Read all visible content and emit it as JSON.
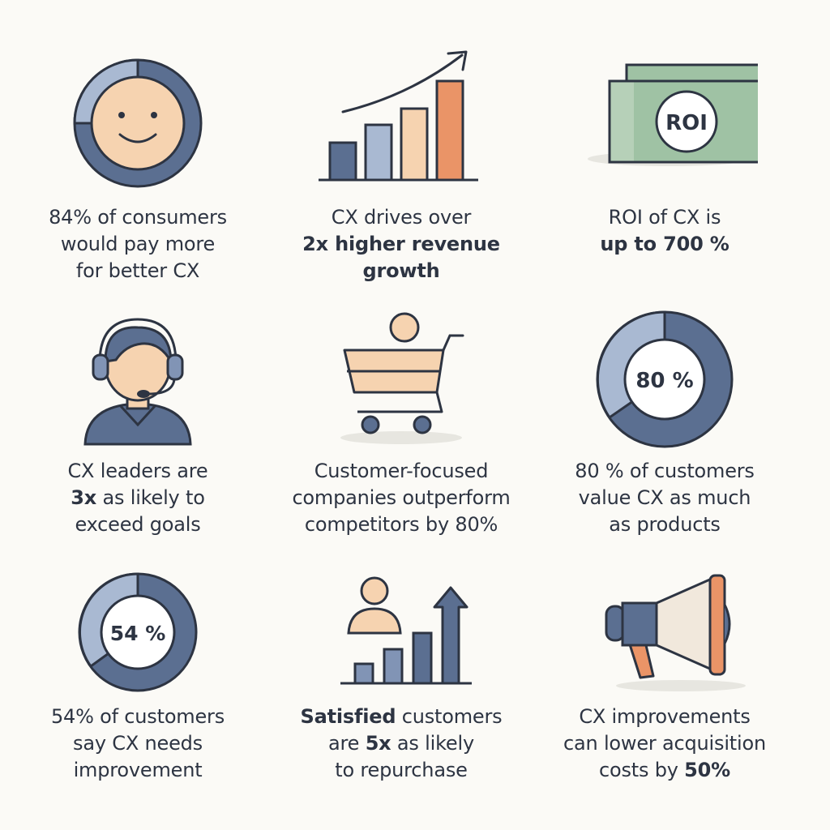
{
  "colors": {
    "navy": "#5b6f91",
    "steel": "#8194b5",
    "pale_blue": "#a9b9d2",
    "peach": "#f6d3b0",
    "orange": "#ea9467",
    "green": "#9fc2a4",
    "outline": "#2d3442",
    "background": "#fbfaf6"
  },
  "tiles": [
    {
      "icon": "smiley-donut-icon",
      "lines": [
        {
          "parts": [
            {
              "text": "84% of consumers",
              "bold": false
            }
          ]
        },
        {
          "parts": [
            {
              "text": "would pay more",
              "bold": false
            }
          ]
        },
        {
          "parts": [
            {
              "text": "for better CX",
              "bold": false
            }
          ]
        }
      ]
    },
    {
      "icon": "bar-growth-chart-icon",
      "lines": [
        {
          "parts": [
            {
              "text": "CX drives over",
              "bold": false
            }
          ]
        },
        {
          "parts": [
            {
              "text": "2x higher revenue",
              "bold": true
            }
          ]
        },
        {
          "parts": [
            {
              "text": "growth",
              "bold": true
            }
          ]
        }
      ]
    },
    {
      "icon": "money-bill-icon",
      "icon_label": "ROI",
      "lines": [
        {
          "parts": [
            {
              "text": "ROI of CX is",
              "bold": false
            }
          ]
        },
        {
          "parts": [
            {
              "text": "up to 700 %",
              "bold": true
            }
          ]
        }
      ]
    },
    {
      "icon": "support-agent-headset-icon",
      "lines": [
        {
          "parts": [
            {
              "text": "CX leaders are",
              "bold": false
            }
          ]
        },
        {
          "parts": [
            {
              "text": "3x",
              "bold": true
            },
            {
              "text": " as likely to",
              "bold": false
            }
          ]
        },
        {
          "parts": [
            {
              "text": "exceed goals",
              "bold": false
            }
          ]
        }
      ]
    },
    {
      "icon": "shopping-cart-icon",
      "lines": [
        {
          "parts": [
            {
              "text": "Customer-focused",
              "bold": false
            }
          ]
        },
        {
          "parts": [
            {
              "text": "companies outperform",
              "bold": false
            }
          ]
        },
        {
          "parts": [
            {
              "text": "competitors by 80%",
              "bold": false
            }
          ]
        }
      ]
    },
    {
      "icon": "donut-80-icon",
      "icon_label": "80 %",
      "lines": [
        {
          "parts": [
            {
              "text": "80 % of customers",
              "bold": false
            }
          ]
        },
        {
          "parts": [
            {
              "text": "value CX as much",
              "bold": false
            }
          ]
        },
        {
          "parts": [
            {
              "text": "as products",
              "bold": false
            }
          ]
        }
      ]
    },
    {
      "icon": "donut-54-icon",
      "icon_label": "54 %",
      "lines": [
        {
          "parts": [
            {
              "text": "54% of customers",
              "bold": false
            }
          ]
        },
        {
          "parts": [
            {
              "text": "say CX needs",
              "bold": false
            }
          ]
        },
        {
          "parts": [
            {
              "text": "improvement",
              "bold": false
            }
          ]
        }
      ]
    },
    {
      "icon": "person-rising-bars-icon",
      "lines": [
        {
          "parts": [
            {
              "text": "Satisfied",
              "bold": true
            },
            {
              "text": " customers",
              "bold": false
            }
          ]
        },
        {
          "parts": [
            {
              "text": "are ",
              "bold": false
            },
            {
              "text": "5x",
              "bold": true
            },
            {
              "text": " as likely",
              "bold": false
            }
          ]
        },
        {
          "parts": [
            {
              "text": "to repurchase",
              "bold": false
            }
          ]
        }
      ]
    },
    {
      "icon": "megaphone-icon",
      "lines": [
        {
          "parts": [
            {
              "text": "CX improvements",
              "bold": false
            }
          ]
        },
        {
          "parts": [
            {
              "text": "can lower acquisition",
              "bold": false
            }
          ]
        },
        {
          "parts": [
            {
              "text": "costs by ",
              "bold": false
            },
            {
              "text": "50%",
              "bold": true
            }
          ]
        }
      ]
    }
  ]
}
